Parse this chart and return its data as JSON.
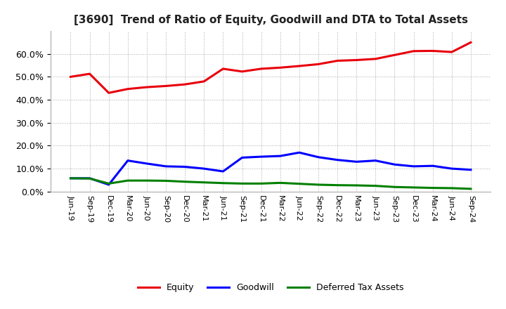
{
  "title": "[3690]  Trend of Ratio of Equity, Goodwill and DTA to Total Assets",
  "x_labels": [
    "Jun-19",
    "Sep-19",
    "Dec-19",
    "Mar-20",
    "Jun-20",
    "Sep-20",
    "Dec-20",
    "Mar-21",
    "Jun-21",
    "Sep-21",
    "Dec-21",
    "Mar-22",
    "Jun-22",
    "Sep-22",
    "Dec-22",
    "Mar-23",
    "Jun-23",
    "Sep-23",
    "Dec-23",
    "Mar-24",
    "Jun-24",
    "Sep-24"
  ],
  "equity": [
    0.5,
    0.513,
    0.43,
    0.447,
    0.455,
    0.46,
    0.467,
    0.48,
    0.535,
    0.523,
    0.535,
    0.54,
    0.547,
    0.555,
    0.57,
    0.573,
    0.578,
    0.595,
    0.612,
    0.613,
    0.608,
    0.65
  ],
  "goodwill": [
    0.058,
    0.058,
    0.03,
    0.135,
    0.122,
    0.11,
    0.108,
    0.1,
    0.088,
    0.148,
    0.152,
    0.155,
    0.17,
    0.15,
    0.138,
    0.13,
    0.135,
    0.118,
    0.11,
    0.112,
    0.1,
    0.095
  ],
  "dta": [
    0.058,
    0.057,
    0.035,
    0.048,
    0.048,
    0.047,
    0.043,
    0.04,
    0.037,
    0.035,
    0.035,
    0.038,
    0.034,
    0.03,
    0.028,
    0.027,
    0.025,
    0.02,
    0.018,
    0.016,
    0.015,
    0.012
  ],
  "equity_color": "#e8000d",
  "goodwill_color": "#0000ff",
  "dta_color": "#008000",
  "background_color": "#ffffff",
  "grid_color": "#aaaaaa",
  "ylim": [
    0.0,
    0.7
  ],
  "yticks": [
    0.0,
    0.1,
    0.2,
    0.3,
    0.4,
    0.5,
    0.6
  ],
  "legend_labels": [
    "Equity",
    "Goodwill",
    "Deferred Tax Assets"
  ],
  "line_width": 2.2
}
